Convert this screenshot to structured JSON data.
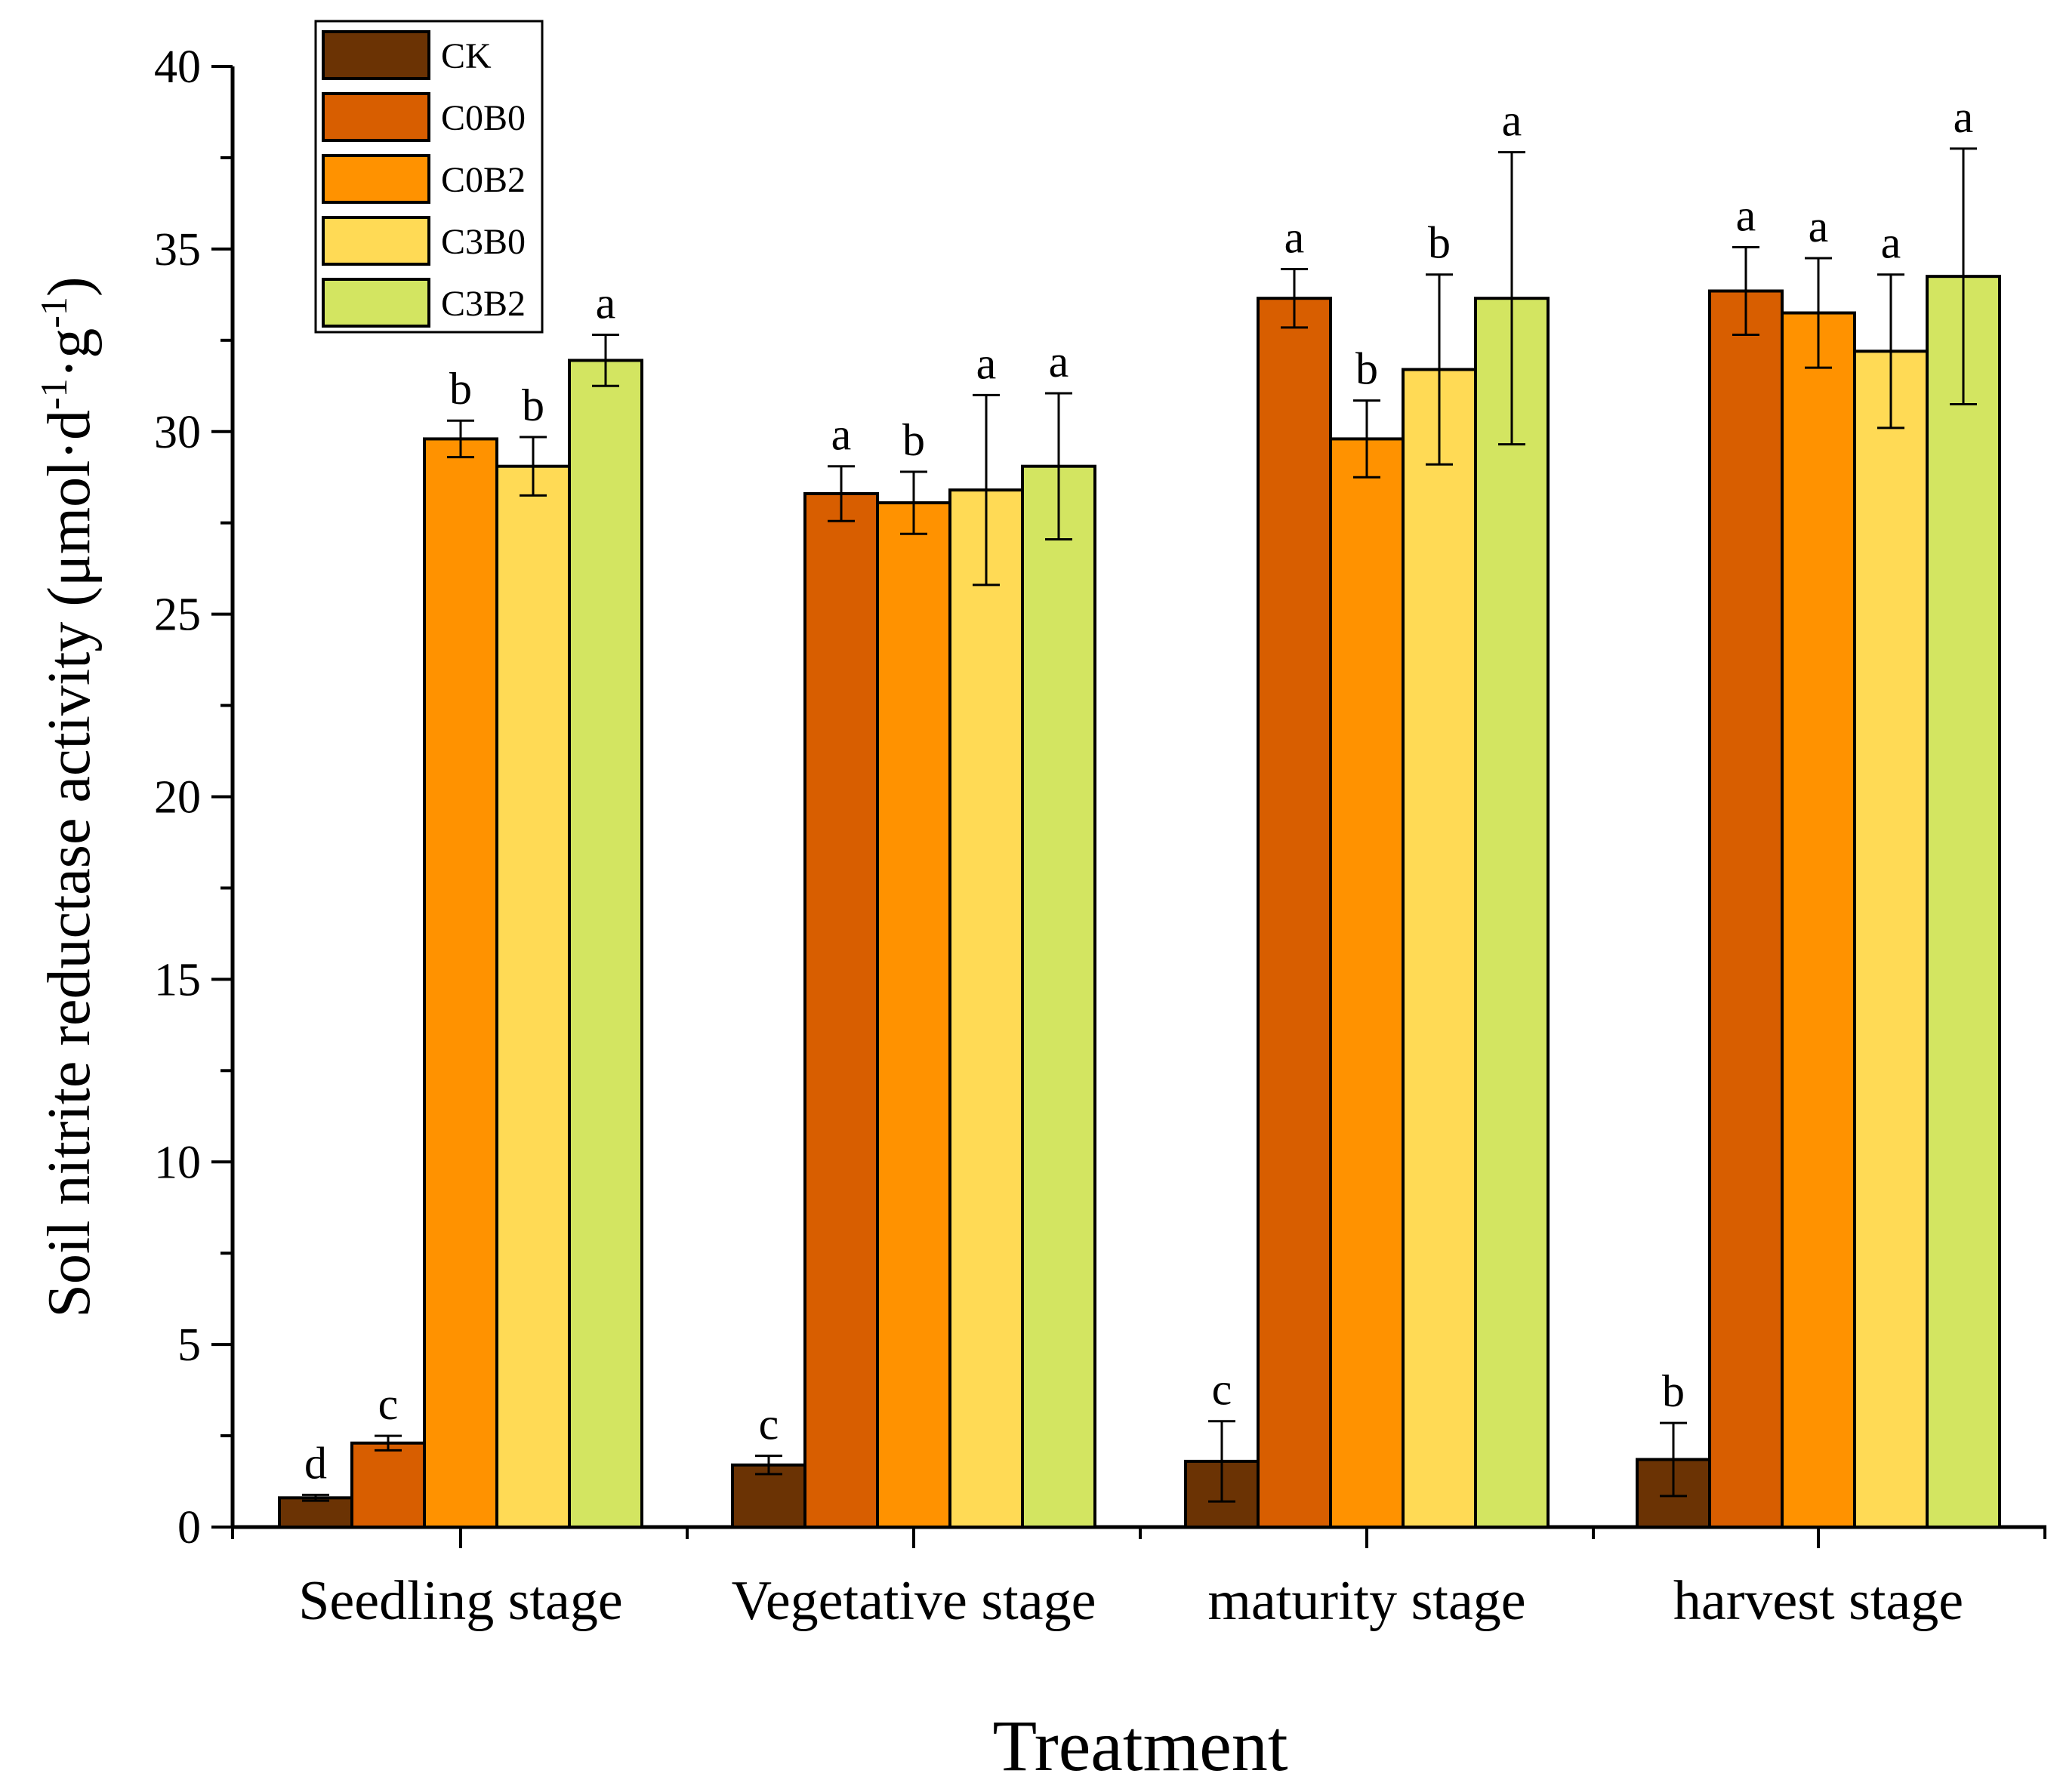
{
  "chart_data": {
    "type": "bar",
    "title": "",
    "xlabel": "Treatment",
    "ylabel": {
      "main": "Soil nitrite reductase activity (μmol·d",
      "sup1": "-1",
      "mid": "·g",
      "sup2": "-1",
      "close": ")"
    },
    "ylim": [
      0,
      40
    ],
    "yticks": [
      0,
      5,
      10,
      15,
      20,
      25,
      30,
      35,
      40
    ],
    "ytick_labels": [
      "0",
      "5",
      "10",
      "15",
      "20",
      "25",
      "30",
      "35",
      "40"
    ],
    "categories": [
      "Seedling stage",
      "Vegetative stage",
      "maturity stage",
      "harvest stage"
    ],
    "legend_position": "top-left",
    "series": [
      {
        "name": "CK",
        "color": "#6B3304",
        "values": [
          0.8,
          1.7,
          1.8,
          1.85
        ],
        "errors": [
          0.08,
          0.25,
          1.1,
          1.0
        ],
        "letters": [
          "d",
          "c",
          "c",
          "b"
        ]
      },
      {
        "name": "C0B0",
        "color": "#D85E00",
        "values": [
          2.3,
          28.3,
          33.65,
          33.85
        ],
        "errors": [
          0.2,
          0.75,
          0.8,
          1.2
        ],
        "letters": [
          "c",
          "a",
          "a",
          "a"
        ]
      },
      {
        "name": "C0B2",
        "color": "#FF9200",
        "values": [
          29.8,
          28.05,
          29.8,
          33.25
        ],
        "errors": [
          0.5,
          0.85,
          1.05,
          1.5
        ],
        "letters": [
          "b",
          "b",
          "b",
          "a"
        ]
      },
      {
        "name": "C3B0",
        "color": "#FFDA55",
        "values": [
          29.05,
          28.4,
          31.7,
          32.2
        ],
        "errors": [
          0.8,
          2.6,
          2.6,
          2.1
        ],
        "letters": [
          "b",
          "a",
          "b",
          "a"
        ]
      },
      {
        "name": "C3B2",
        "color": "#D3E561",
        "values": [
          31.95,
          29.05,
          33.65,
          34.25
        ],
        "errors": [
          0.7,
          2.0,
          4.0,
          3.5
        ],
        "letters": [
          "a",
          "a",
          "a",
          "a"
        ]
      }
    ]
  }
}
